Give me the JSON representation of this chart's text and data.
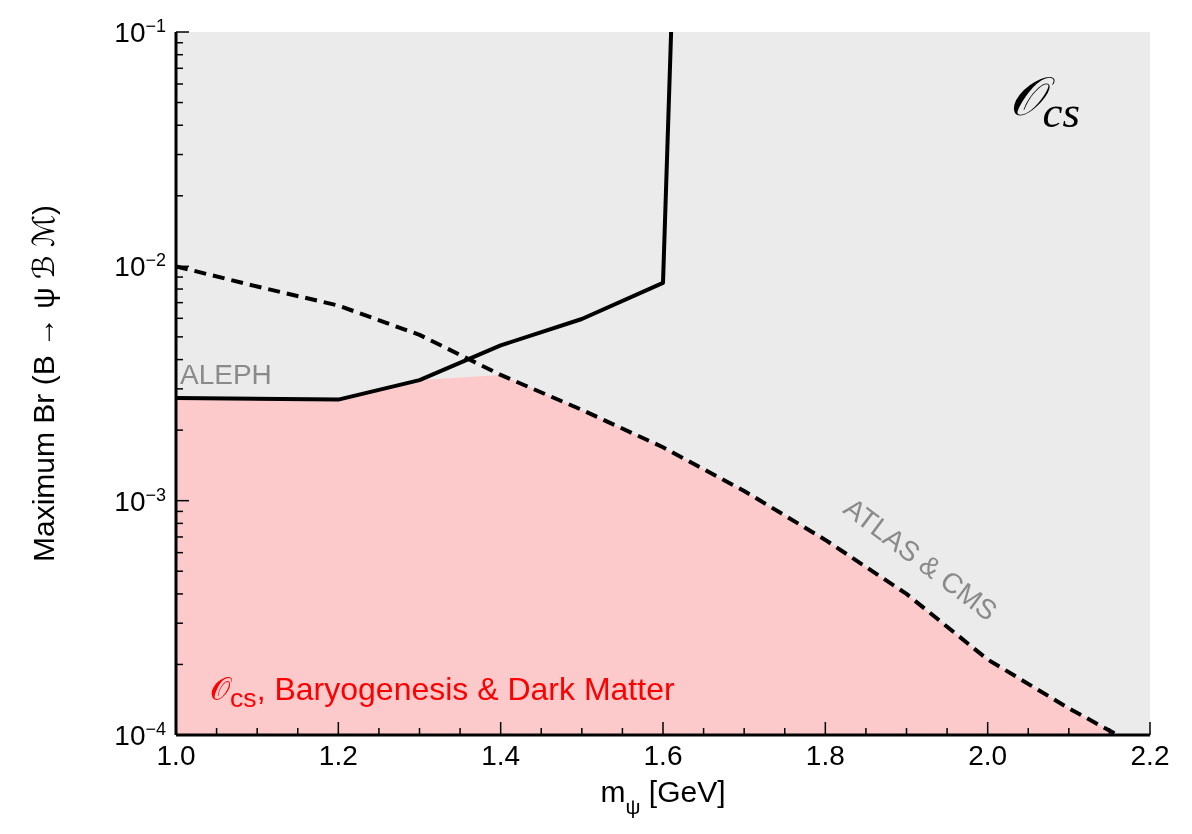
{
  "chart_data": {
    "type": "line",
    "xlabel": "m$_{ψ}$ [GeV]",
    "ylabel": "Maximum Br (B → ψ ℬ ℳ)",
    "xlim": [
      1.0,
      2.2
    ],
    "xticks": [
      {
        "value": 1.0,
        "label": "1.0"
      },
      {
        "value": 1.05,
        "label": null
      },
      {
        "value": 1.1,
        "label": null
      },
      {
        "value": 1.15,
        "label": null
      },
      {
        "value": 1.2,
        "label": "1.2"
      },
      {
        "value": 1.25,
        "label": null
      },
      {
        "value": 1.3,
        "label": null
      },
      {
        "value": 1.35,
        "label": null
      },
      {
        "value": 1.4,
        "label": "1.4"
      },
      {
        "value": 1.45,
        "label": null
      },
      {
        "value": 1.5,
        "label": null
      },
      {
        "value": 1.55,
        "label": null
      },
      {
        "value": 1.6,
        "label": "1.6"
      },
      {
        "value": 1.65,
        "label": null
      },
      {
        "value": 1.7,
        "label": null
      },
      {
        "value": 1.75,
        "label": null
      },
      {
        "value": 1.8,
        "label": "1.8"
      },
      {
        "value": 1.85,
        "label": null
      },
      {
        "value": 1.9,
        "label": null
      },
      {
        "value": 1.95,
        "label": null
      },
      {
        "value": 2.0,
        "label": "2.0"
      },
      {
        "value": 2.05,
        "label": null
      },
      {
        "value": 2.1,
        "label": null
      },
      {
        "value": 2.15,
        "label": null
      },
      {
        "value": 2.2,
        "label": "2.2"
      }
    ],
    "ylim": [
      0.0001,
      0.1
    ],
    "log": "y",
    "yticks": [
      {
        "value": 0.0001,
        "label": "10$^{−4}$"
      },
      {
        "value": 0.0002,
        "label": null
      },
      {
        "value": 0.0003,
        "label": null
      },
      {
        "value": 0.0004,
        "label": null
      },
      {
        "value": 0.0005,
        "label": null
      },
      {
        "value": 0.0006,
        "label": null
      },
      {
        "value": 0.0007,
        "label": null
      },
      {
        "value": 0.0008,
        "label": null
      },
      {
        "value": 0.0009,
        "label": null
      },
      {
        "value": 0.001,
        "label": "10$^{−3}$"
      },
      {
        "value": 0.002,
        "label": null
      },
      {
        "value": 0.003,
        "label": null
      },
      {
        "value": 0.004,
        "label": null
      },
      {
        "value": 0.005,
        "label": null
      },
      {
        "value": 0.006,
        "label": null
      },
      {
        "value": 0.007,
        "label": null
      },
      {
        "value": 0.008,
        "label": null
      },
      {
        "value": 0.009,
        "label": null
      },
      {
        "value": 0.01,
        "label": "10$^{−2}$"
      },
      {
        "value": 0.02,
        "label": null
      },
      {
        "value": 0.03,
        "label": null
      },
      {
        "value": 0.04,
        "label": null
      },
      {
        "value": 0.05,
        "label": null
      },
      {
        "value": 0.06,
        "label": null
      },
      {
        "value": 0.07,
        "label": null
      },
      {
        "value": 0.08,
        "label": null
      },
      {
        "value": 0.09,
        "label": null
      },
      {
        "value": 0.1,
        "label": "10$^{−1}$"
      }
    ],
    "series": [
      {
        "type": "area",
        "color": "#fccaca",
        "x": [
          1.0,
          1.2,
          1.3,
          1.4,
          1.5,
          1.6,
          1.7,
          1.8,
          1.9,
          2.0,
          2.1,
          2.16
        ],
        "values": [
          0.00274,
          0.0027,
          0.00327,
          0.00344,
          0.00244,
          0.00169,
          0.0011,
          0.00068,
          0.0004,
          0.00021,
          0.00013,
          0.0001
        ]
      },
      {
        "color": "#000000",
        "line_style": "solid",
        "x": [
          1.0,
          1.2,
          1.3,
          1.4,
          1.5,
          1.6,
          1.61
        ],
        "values": [
          0.00274,
          0.0027,
          0.00327,
          0.0046,
          0.00596,
          0.0085,
          0.1
        ]
      },
      {
        "color": "#000000",
        "line_style": "dashed",
        "x": [
          1.0,
          1.1,
          1.2,
          1.3,
          1.4,
          1.5,
          1.6,
          1.7,
          1.8,
          1.9,
          2.0,
          2.1,
          2.16
        ],
        "values": [
          0.01,
          0.0082,
          0.0068,
          0.0051,
          0.00344,
          0.00244,
          0.00169,
          0.0011,
          0.00068,
          0.0004,
          0.00021,
          0.00013,
          0.0001
        ]
      }
    ],
    "annotations": [
      "ALEPH",
      "ATLAS & CMS",
      "𝒪$_{cs}$",
      "𝒪$_{cs}$, Baryogenesis & Dark Matter"
    ],
    "grid": false,
    "legend": false,
    "marker": "none"
  }
}
